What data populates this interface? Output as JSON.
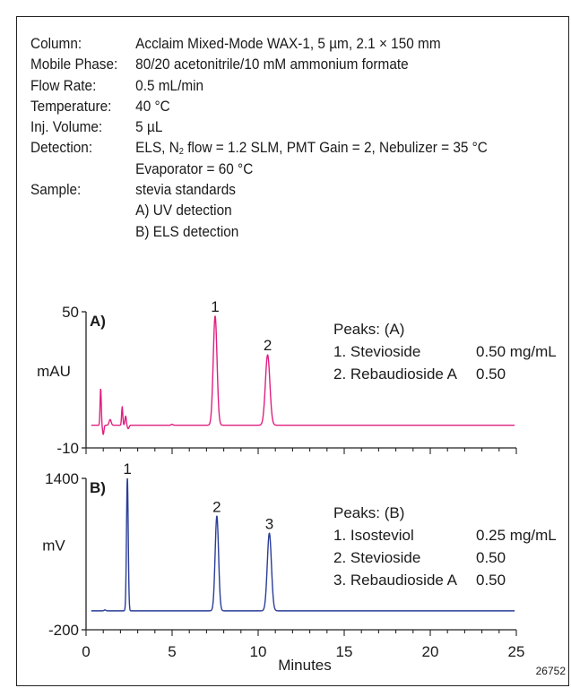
{
  "conditions": [
    {
      "label": "Column:",
      "value": "Acclaim Mixed-Mode WAX-1, 5 µm, 2.1 × 150 mm"
    },
    {
      "label": "Mobile Phase:",
      "value": "80/20 acetonitrile/10 mM ammonium formate"
    },
    {
      "label": "Flow Rate:",
      "value": "0.5 mL/min"
    },
    {
      "label": "Temperature:",
      "value": "40 °C"
    },
    {
      "label": "Inj. Volume:",
      "value": "5 µL"
    },
    {
      "label": "Detection:",
      "value_pre": "ELS, N",
      "value_sub": "2",
      "value_post": " flow = 1.2 SLM, PMT Gain = 2, Nebulizer = 35 °C"
    },
    {
      "label": "",
      "value": "Evaporator = 60 °C"
    },
    {
      "label": "Sample:",
      "value": "stevia standards"
    },
    {
      "label": "",
      "value": "A) UV detection"
    },
    {
      "label": "",
      "value": "B) ELS detection"
    }
  ],
  "figure_id": "26752",
  "chart_data": [
    {
      "type": "line",
      "panel_label": "A)",
      "ylabel": "mAU",
      "ylim": [
        -10,
        50
      ],
      "xlim": [
        0,
        25
      ],
      "yticks": [
        50,
        -10
      ],
      "color": "#e0207f",
      "baseline": 0,
      "features": [
        {
          "x": 0.85,
          "height": 16,
          "width": 0.035
        },
        {
          "x": 1.0,
          "height": -4,
          "width": 0.04
        },
        {
          "x": 1.4,
          "height": 2.5,
          "width": 0.06
        },
        {
          "x": 2.1,
          "height": 8,
          "width": 0.035
        },
        {
          "x": 2.3,
          "height": 4,
          "width": 0.04
        },
        {
          "x": 2.45,
          "height": -1.5,
          "width": 0.05
        },
        {
          "x": 5.0,
          "height": 0.4,
          "width": 0.05
        },
        {
          "x": 7.5,
          "height": 48,
          "width": 0.11
        },
        {
          "x": 10.55,
          "height": 31,
          "width": 0.13
        }
      ],
      "peak_labels": [
        {
          "text": "1",
          "x": 7.5,
          "y": 48
        },
        {
          "text": "2",
          "x": 10.55,
          "y": 31
        }
      ],
      "peaks_title": "Peaks: (A)",
      "peaks_table": [
        {
          "name": "1. Stevioside",
          "amount": "0.50 mg/mL"
        },
        {
          "name": "2. Rebaudioside A",
          "amount": "0.50"
        }
      ]
    },
    {
      "type": "line",
      "panel_label": "B)",
      "ylabel": "mV",
      "ylim": [
        -200,
        1400
      ],
      "xlim": [
        0,
        25
      ],
      "yticks": [
        1400,
        -200
      ],
      "color": "#2a3d99",
      "baseline": 0,
      "features": [
        {
          "x": 1.1,
          "height": 10,
          "width": 0.05
        },
        {
          "x": 2.4,
          "height": 1400,
          "width": 0.05
        },
        {
          "x": 7.6,
          "height": 1000,
          "width": 0.1
        },
        {
          "x": 10.65,
          "height": 820,
          "width": 0.12
        }
      ],
      "peak_labels": [
        {
          "text": "1",
          "x": 2.4,
          "y": 1400
        },
        {
          "text": "2",
          "x": 7.6,
          "y": 1000
        },
        {
          "text": "3",
          "x": 10.65,
          "y": 820
        }
      ],
      "peaks_title": "Peaks: (B)",
      "peaks_table": [
        {
          "name": "1. Isosteviol",
          "amount": "0.25 mg/mL"
        },
        {
          "name": "2. Stevioside",
          "amount": "0.50"
        },
        {
          "name": "3. Rebaudioside A",
          "amount": "0.50"
        }
      ]
    }
  ],
  "x_axis": {
    "label": "Minutes",
    "ticks": [
      0,
      5,
      10,
      15,
      20,
      25
    ]
  }
}
